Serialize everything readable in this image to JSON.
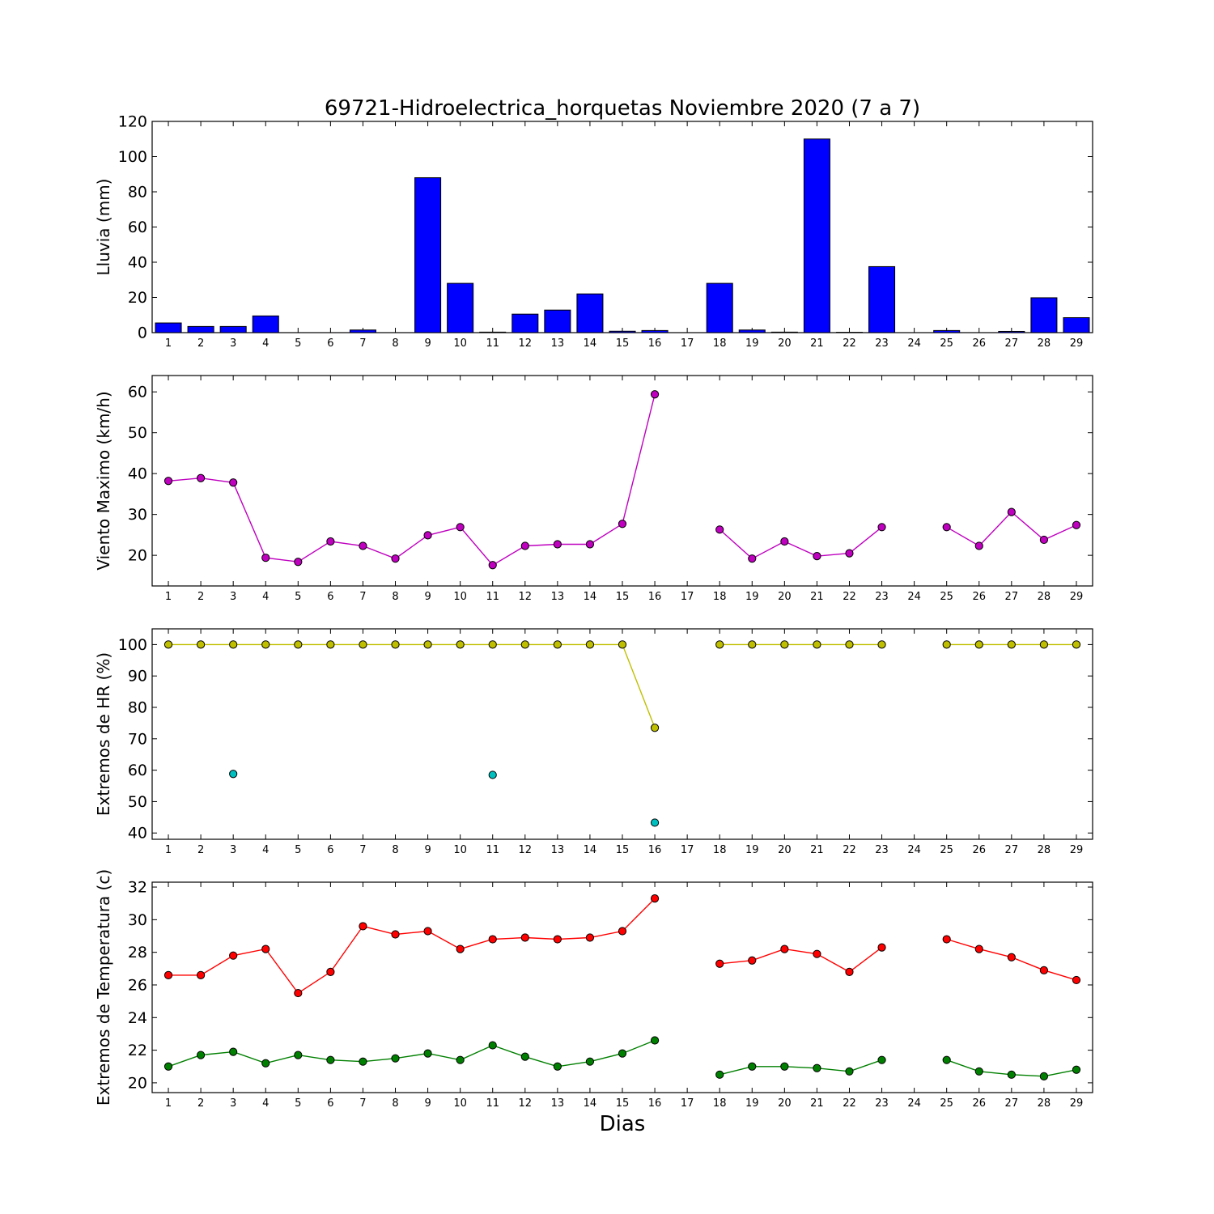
{
  "chart_data": {
    "title": "69721-Hidroelectrica_horquetas Noviembre 2020  (7 a 7)",
    "xlabel": "Dias",
    "x_ticks": [
      1,
      2,
      3,
      4,
      5,
      6,
      7,
      8,
      9,
      10,
      11,
      12,
      13,
      14,
      15,
      16,
      17,
      18,
      19,
      20,
      21,
      22,
      23,
      24,
      25,
      26,
      27,
      28,
      29
    ],
    "panels": [
      {
        "type": "bar",
        "ylabel": "Lluvia (mm)",
        "ylim": [
          0,
          120
        ],
        "yticks": [
          0,
          20,
          40,
          60,
          80,
          100,
          120
        ],
        "colors": {
          "bar": "#0000ff"
        },
        "series": [
          {
            "values": [
              5.5,
              3.5,
              3.5,
              9.5,
              0,
              0,
              1.5,
              0,
              88,
              28,
              0.3,
              10.5,
              12.8,
              22,
              0.8,
              1.2,
              0,
              28,
              1.5,
              0.3,
              110,
              0.2,
              37.5,
              0,
              1.2,
              0,
              0.7,
              19.8,
              8.5
            ]
          }
        ]
      },
      {
        "type": "line",
        "ylabel": "Viento Maximo (km/h)",
        "ylim": [
          12.5,
          64
        ],
        "yticks": [
          20,
          30,
          40,
          50,
          60
        ],
        "series": [
          {
            "color": "#bf00bf",
            "values": [
              38.2,
              38.9,
              37.8,
              19.4,
              18.4,
              23.4,
              22.3,
              19.2,
              24.9,
              26.9,
              17.6,
              22.3,
              22.7,
              22.7,
              27.7,
              59.4,
              null,
              26.3,
              19.2,
              23.4,
              19.8,
              20.5,
              26.9,
              null,
              26.9,
              22.3,
              30.6,
              23.8,
              27.4
            ]
          }
        ]
      },
      {
        "type": "line",
        "ylabel": "Extremos de HR (%)",
        "ylim": [
          38,
          105
        ],
        "yticks": [
          40,
          50,
          60,
          70,
          80,
          90,
          100
        ],
        "series": [
          {
            "color": "#bfbf00",
            "values": [
              100,
              100,
              100,
              100,
              100,
              100,
              100,
              100,
              100,
              100,
              100,
              100,
              100,
              100,
              100,
              73.5,
              null,
              100,
              100,
              100,
              100,
              100,
              100,
              null,
              100,
              100,
              100,
              100,
              100
            ]
          },
          {
            "color": "#00bfbf",
            "values": [
              null,
              null,
              58.8,
              null,
              null,
              null,
              null,
              null,
              null,
              null,
              58.5,
              null,
              null,
              null,
              null,
              43.3,
              null,
              null,
              null,
              null,
              null,
              null,
              null,
              null,
              null,
              null,
              null,
              null,
              null
            ]
          }
        ]
      },
      {
        "type": "line",
        "ylabel": "Extremos de Temperatura (c)",
        "ylim": [
          19.4,
          32.3
        ],
        "yticks": [
          20,
          22,
          24,
          26,
          28,
          30,
          32
        ],
        "series": [
          {
            "color": "#ff0000",
            "values": [
              26.6,
              26.6,
              27.8,
              28.2,
              25.5,
              26.8,
              29.6,
              29.1,
              29.3,
              28.2,
              28.8,
              28.9,
              28.8,
              28.9,
              29.3,
              31.3,
              null,
              27.3,
              27.5,
              28.2,
              27.9,
              26.8,
              28.3,
              null,
              28.8,
              28.2,
              27.7,
              26.9,
              26.3
            ]
          },
          {
            "color": "#008000",
            "values": [
              21.0,
              21.7,
              21.9,
              21.2,
              21.7,
              21.4,
              21.3,
              21.5,
              21.8,
              21.4,
              22.3,
              21.6,
              21.0,
              21.3,
              21.8,
              22.6,
              null,
              20.5,
              21.0,
              21.0,
              20.9,
              20.7,
              21.4,
              null,
              21.4,
              20.7,
              20.5,
              20.4,
              20.8
            ]
          }
        ]
      }
    ]
  }
}
